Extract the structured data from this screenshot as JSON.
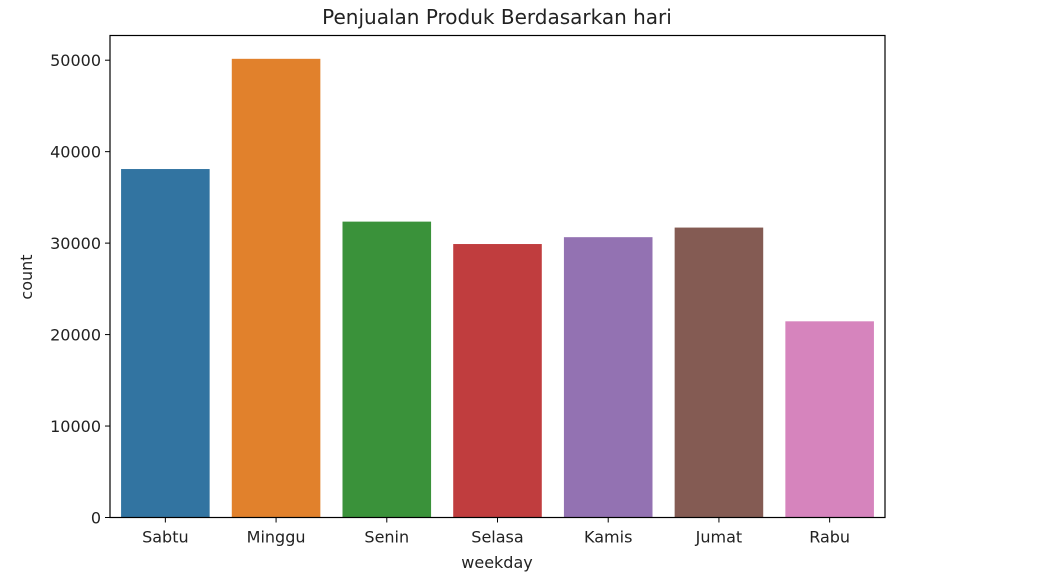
{
  "chart_data": {
    "type": "bar",
    "title": "Penjualan Produk Berdasarkan hari",
    "xlabel": "weekday",
    "ylabel": "count",
    "categories": [
      "Sabtu",
      "Minggu",
      "Senin",
      "Selasa",
      "Kamis",
      "Jumat",
      "Rabu"
    ],
    "values": [
      38100,
      50150,
      32350,
      29900,
      30650,
      31700,
      21450
    ],
    "colors": [
      "#3274a1",
      "#e1812c",
      "#3a923a",
      "#c03d3e",
      "#9372b2",
      "#845b53",
      "#d684bd"
    ],
    "ylim": [
      0,
      52700
    ],
    "yticks": [
      0,
      10000,
      20000,
      30000,
      40000,
      50000
    ],
    "ytick_labels": [
      "0",
      "10000",
      "20000",
      "30000",
      "40000",
      "50000"
    ],
    "grid": false,
    "legend": false
  }
}
